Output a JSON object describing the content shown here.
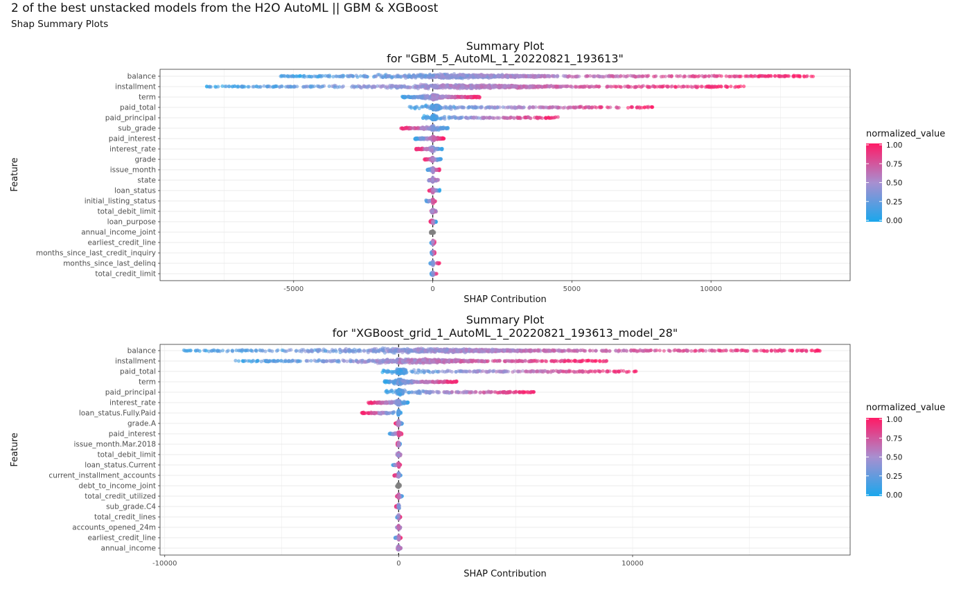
{
  "page": {
    "title": "2 of the best unstacked models from the H2O AutoML || GBM & XGBoost",
    "subtitle": "Shap Summary Plots"
  },
  "colors": {
    "low": "#1aa7ec",
    "mid": "#a88fd0",
    "high": "#ff1a66",
    "neutral": "#808080"
  },
  "chart_data": [
    {
      "type": "scatter",
      "title_line1": "Summary Plot",
      "title_line2": "for \"GBM_5_AutoML_1_20220821_193613\"",
      "xlabel": "SHAP Contribution",
      "ylabel": "Feature",
      "xlim": [
        -9800,
        15000
      ],
      "xticks": [
        -5000,
        0,
        5000,
        10000
      ],
      "xtick_labels": [
        "-5000",
        "0",
        "5000",
        "10000"
      ],
      "grid": true,
      "legend": {
        "title": "normalized_value",
        "position": "right",
        "ticks": [
          "1.00",
          "0.75",
          "0.50",
          "0.25",
          "0.00"
        ]
      },
      "features": [
        {
          "name": "balance",
          "min": -5500,
          "max": 13700,
          "density": 900,
          "trend": 1,
          "core": 3,
          "neutral": false
        },
        {
          "name": "installment",
          "min": -8200,
          "max": 11300,
          "density": 900,
          "trend": 1,
          "core": 3,
          "neutral": false
        },
        {
          "name": "term",
          "min": -1100,
          "max": 1700,
          "density": 650,
          "trend": 1,
          "core": 0.8,
          "neutral": false
        },
        {
          "name": "paid_total",
          "min": -900,
          "max": 7900,
          "density": 450,
          "trend": 1,
          "core": 0.35,
          "neutral": false
        },
        {
          "name": "paid_principal",
          "min": -400,
          "max": 4500,
          "density": 350,
          "trend": 1,
          "core": 0.35,
          "neutral": false
        },
        {
          "name": "sub_grade",
          "min": -1150,
          "max": 550,
          "density": 260,
          "trend": -1,
          "core": 0.6,
          "neutral": false
        },
        {
          "name": "paid_interest",
          "min": -650,
          "max": 400,
          "density": 260,
          "trend": 1,
          "core": 0.6,
          "neutral": false
        },
        {
          "name": "interest_rate",
          "min": -600,
          "max": 350,
          "density": 230,
          "trend": -1,
          "core": 0.6,
          "neutral": false
        },
        {
          "name": "grade",
          "min": -300,
          "max": 300,
          "density": 140,
          "trend": -1,
          "core": 0.6,
          "neutral": false
        },
        {
          "name": "issue_month",
          "min": -200,
          "max": 250,
          "density": 120,
          "trend": 1,
          "core": 0.6,
          "neutral": false
        },
        {
          "name": "state",
          "min": -150,
          "max": 200,
          "density": 90,
          "trend": 0,
          "core": 0.6,
          "neutral": false
        },
        {
          "name": "loan_status",
          "min": -150,
          "max": 250,
          "density": 90,
          "trend": -1,
          "core": 0.6,
          "neutral": false
        },
        {
          "name": "initial_listing_status",
          "min": -250,
          "max": 100,
          "density": 80,
          "trend": 1,
          "core": 0.6,
          "neutral": false
        },
        {
          "name": "total_debit_limit",
          "min": -120,
          "max": 120,
          "density": 70,
          "trend": 0,
          "core": 0.6,
          "neutral": false
        },
        {
          "name": "loan_purpose",
          "min": -100,
          "max": 120,
          "density": 70,
          "trend": -1,
          "core": 0.6,
          "neutral": false
        },
        {
          "name": "annual_income_joint",
          "min": -80,
          "max": 60,
          "density": 50,
          "trend": 0,
          "core": 0.6,
          "neutral": true
        },
        {
          "name": "earliest_credit_line",
          "min": -80,
          "max": 80,
          "density": 60,
          "trend": 1,
          "core": 0.6,
          "neutral": false
        },
        {
          "name": "months_since_last_credit_inquiry",
          "min": -60,
          "max": 80,
          "density": 50,
          "trend": 1,
          "core": 0.6,
          "neutral": false
        },
        {
          "name": "months_since_last_delinq",
          "min": -120,
          "max": 250,
          "density": 50,
          "trend": 1,
          "core": 0.6,
          "neutral": false
        },
        {
          "name": "total_credit_limit",
          "min": -60,
          "max": 150,
          "density": 50,
          "trend": 1,
          "core": 0.6,
          "neutral": false
        }
      ]
    },
    {
      "type": "scatter",
      "title_line1": "Summary Plot",
      "title_line2": "for \"XGBoost_grid_1_AutoML_1_20220821_193613_model_28\"",
      "xlabel": "SHAP Contribution",
      "ylabel": "Feature",
      "xlim": [
        -10200,
        19300
      ],
      "xticks": [
        -10000,
        0,
        10000
      ],
      "xtick_labels": [
        "-10000",
        "0",
        "10000"
      ],
      "grid": true,
      "legend": {
        "title": "normalized_value",
        "position": "right",
        "ticks": [
          "1.00",
          "0.75",
          "0.50",
          "0.25",
          "0.00"
        ]
      },
      "features": [
        {
          "name": "balance",
          "min": -9200,
          "max": 18100,
          "density": 1000,
          "trend": 1,
          "core": 3,
          "neutral": false
        },
        {
          "name": "installment",
          "min": -7000,
          "max": 8900,
          "density": 850,
          "trend": 1,
          "core": 2.5,
          "neutral": false
        },
        {
          "name": "paid_total",
          "min": -700,
          "max": 10200,
          "density": 500,
          "trend": 1,
          "core": 0.35,
          "neutral": false
        },
        {
          "name": "term",
          "min": -600,
          "max": 2500,
          "density": 450,
          "trend": 1,
          "core": 0.7,
          "neutral": false
        },
        {
          "name": "paid_principal",
          "min": -600,
          "max": 5800,
          "density": 400,
          "trend": 1,
          "core": 0.35,
          "neutral": false
        },
        {
          "name": "interest_rate",
          "min": -1300,
          "max": 400,
          "density": 300,
          "trend": -1,
          "core": 0.6,
          "neutral": false
        },
        {
          "name": "loan_status.Fully.Paid",
          "min": -1600,
          "max": 100,
          "density": 180,
          "trend": -1,
          "core": 0.2,
          "neutral": false
        },
        {
          "name": "grade.A",
          "min": -150,
          "max": 150,
          "density": 120,
          "trend": -1,
          "core": 0.6,
          "neutral": false
        },
        {
          "name": "paid_interest",
          "min": -400,
          "max": 150,
          "density": 120,
          "trend": 1,
          "core": 0.6,
          "neutral": false
        },
        {
          "name": "issue_month.Mar.2018",
          "min": -60,
          "max": 60,
          "density": 90,
          "trend": -1,
          "core": 0.6,
          "neutral": false
        },
        {
          "name": "total_debit_limit",
          "min": -80,
          "max": 80,
          "density": 80,
          "trend": 0,
          "core": 0.6,
          "neutral": false
        },
        {
          "name": "loan_status.Current",
          "min": -250,
          "max": 80,
          "density": 80,
          "trend": 1,
          "core": 0.6,
          "neutral": false
        },
        {
          "name": "current_installment_accounts",
          "min": -200,
          "max": 100,
          "density": 80,
          "trend": -1,
          "core": 0.6,
          "neutral": false
        },
        {
          "name": "debt_to_income_joint",
          "min": -80,
          "max": 60,
          "density": 50,
          "trend": 0,
          "core": 0.6,
          "neutral": true
        },
        {
          "name": "total_credit_utilized",
          "min": -100,
          "max": 150,
          "density": 70,
          "trend": -1,
          "core": 0.6,
          "neutral": false
        },
        {
          "name": "sub_grade.C4",
          "min": -120,
          "max": 60,
          "density": 70,
          "trend": -1,
          "core": 0.6,
          "neutral": false
        },
        {
          "name": "total_credit_lines",
          "min": -80,
          "max": 80,
          "density": 60,
          "trend": 1,
          "core": 0.6,
          "neutral": false
        },
        {
          "name": "accounts_opened_24m",
          "min": -80,
          "max": 80,
          "density": 60,
          "trend": 0,
          "core": 0.6,
          "neutral": false
        },
        {
          "name": "earliest_credit_line",
          "min": -150,
          "max": 100,
          "density": 60,
          "trend": 1,
          "core": 0.6,
          "neutral": false
        },
        {
          "name": "annual_income",
          "min": -100,
          "max": 100,
          "density": 60,
          "trend": 0,
          "core": 0.6,
          "neutral": false
        }
      ]
    }
  ]
}
